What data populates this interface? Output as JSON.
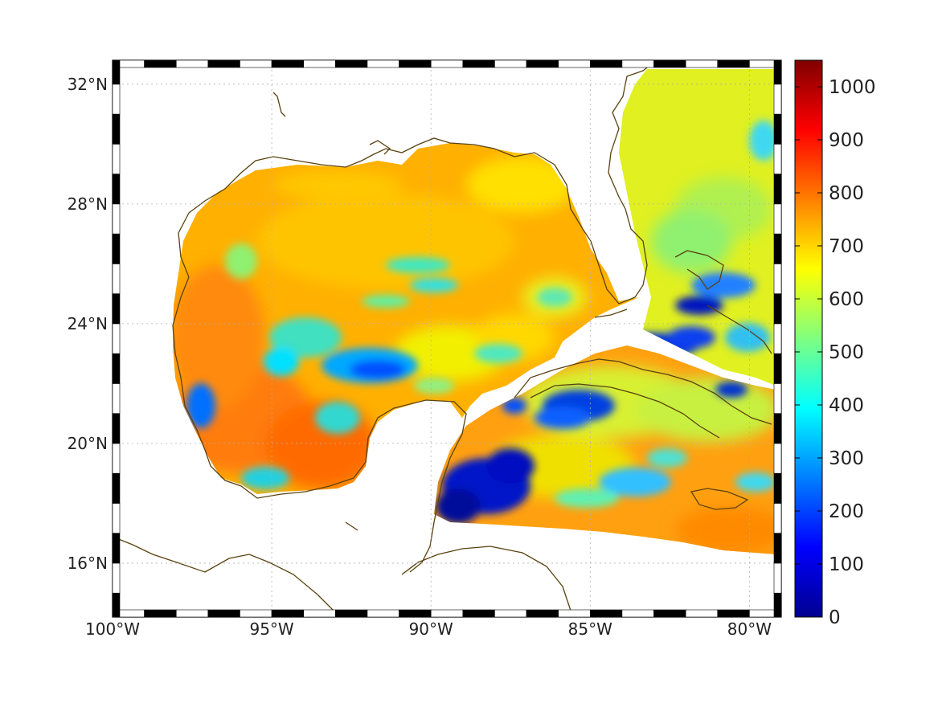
{
  "map": {
    "lon_range": [
      -100,
      -79
    ],
    "lat_range": [
      14.2,
      32.8
    ],
    "lat_ticks": [
      {
        "value": 32,
        "label": "32°N"
      },
      {
        "value": 28,
        "label": "28°N"
      },
      {
        "value": 24,
        "label": "24°N"
      },
      {
        "value": 20,
        "label": "20°N"
      },
      {
        "value": 16,
        "label": "16°N"
      }
    ],
    "lon_ticks": [
      {
        "value": -100,
        "label": "100°W"
      },
      {
        "value": -95,
        "label": "95°W"
      },
      {
        "value": -90,
        "label": "90°W"
      },
      {
        "value": -85,
        "label": "85°W"
      },
      {
        "value": -80,
        "label": "80°W"
      }
    ],
    "grid": true,
    "coastline_color": "#5a4210"
  },
  "colorbar": {
    "range": [
      0,
      1050
    ],
    "colormap": "jet",
    "ticks": [
      {
        "value": 1000,
        "label": "1000"
      },
      {
        "value": 900,
        "label": "900"
      },
      {
        "value": 800,
        "label": "800"
      },
      {
        "value": 700,
        "label": "700"
      },
      {
        "value": 600,
        "label": "600"
      },
      {
        "value": 500,
        "label": "500"
      },
      {
        "value": 400,
        "label": "400"
      },
      {
        "value": 300,
        "label": "300"
      },
      {
        "value": 200,
        "label": "200"
      },
      {
        "value": 100,
        "label": "100"
      },
      {
        "value": 0,
        "label": "0"
      }
    ]
  }
}
